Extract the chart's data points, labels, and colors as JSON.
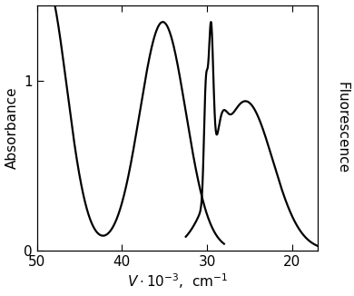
{
  "ylabel_left": "Absorbance",
  "ylabel_right": "Fluorescence",
  "xlabel": "V·10⁻³,  cm⁻¹",
  "xlim": [
    50,
    17
  ],
  "ylim": [
    0,
    1.45
  ],
  "yticks": [
    0,
    1
  ],
  "xticks": [
    50,
    40,
    30,
    20
  ],
  "background_color": "#ffffff",
  "line_color": "#000000",
  "linewidth": 1.6
}
